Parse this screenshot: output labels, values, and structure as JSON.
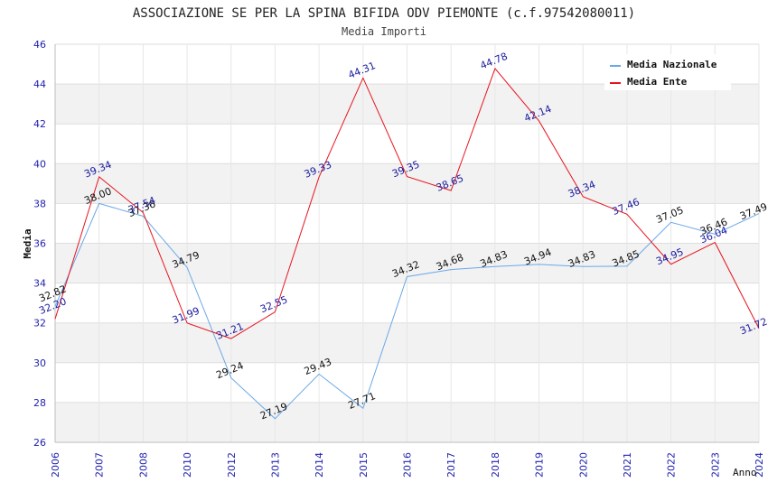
{
  "chart_data": {
    "type": "line",
    "title": "ASSOCIAZIONE SE PER LA SPINA BIFIDA ODV PIEMONTE (c.f.97542080011)",
    "subtitle": "Media Importi",
    "xlabel": "Anno",
    "ylabel": "Media",
    "ylim": [
      26,
      46
    ],
    "yticks": [
      26,
      28,
      30,
      32,
      34,
      36,
      38,
      40,
      42,
      44,
      46
    ],
    "grid": true,
    "legend_position": "top-right",
    "categories": [
      "2006",
      "2007",
      "2008",
      "2010",
      "2012",
      "2013",
      "2014",
      "2015",
      "2016",
      "2017",
      "2018",
      "2019",
      "2020",
      "2021",
      "2022",
      "2023",
      "2024"
    ],
    "series": [
      {
        "name": "Media Nazionale",
        "color": "#6aa8e8",
        "values": [
          32.82,
          38.0,
          37.36,
          34.79,
          29.24,
          27.19,
          29.43,
          27.71,
          34.32,
          34.68,
          34.83,
          34.94,
          34.83,
          34.85,
          37.05,
          36.46,
          37.49
        ]
      },
      {
        "name": "Media Ente",
        "color": "#e8141e",
        "values": [
          32.2,
          39.34,
          37.54,
          31.99,
          31.21,
          32.55,
          39.33,
          44.31,
          39.35,
          38.65,
          44.78,
          42.14,
          38.34,
          37.46,
          34.95,
          36.04,
          31.72
        ]
      }
    ],
    "labels_nazionale": [
      "32.82",
      "38.00",
      "37.36",
      "34.79",
      "29.24",
      "27.19",
      "29.43",
      "27.71",
      "34.32",
      "34.68",
      "34.83",
      "34.94",
      "34.83",
      "34.85",
      "37.05",
      "36.46",
      "37.49"
    ],
    "labels_ente": [
      "32.20",
      "39.34",
      "37.54",
      "31.99",
      "31.21",
      "32.55",
      "39.33",
      "44.31",
      "39.35",
      "38.65",
      "44.78",
      "42.14",
      "38.34",
      "37.46",
      "34.95",
      "36.04",
      "31.72"
    ]
  }
}
